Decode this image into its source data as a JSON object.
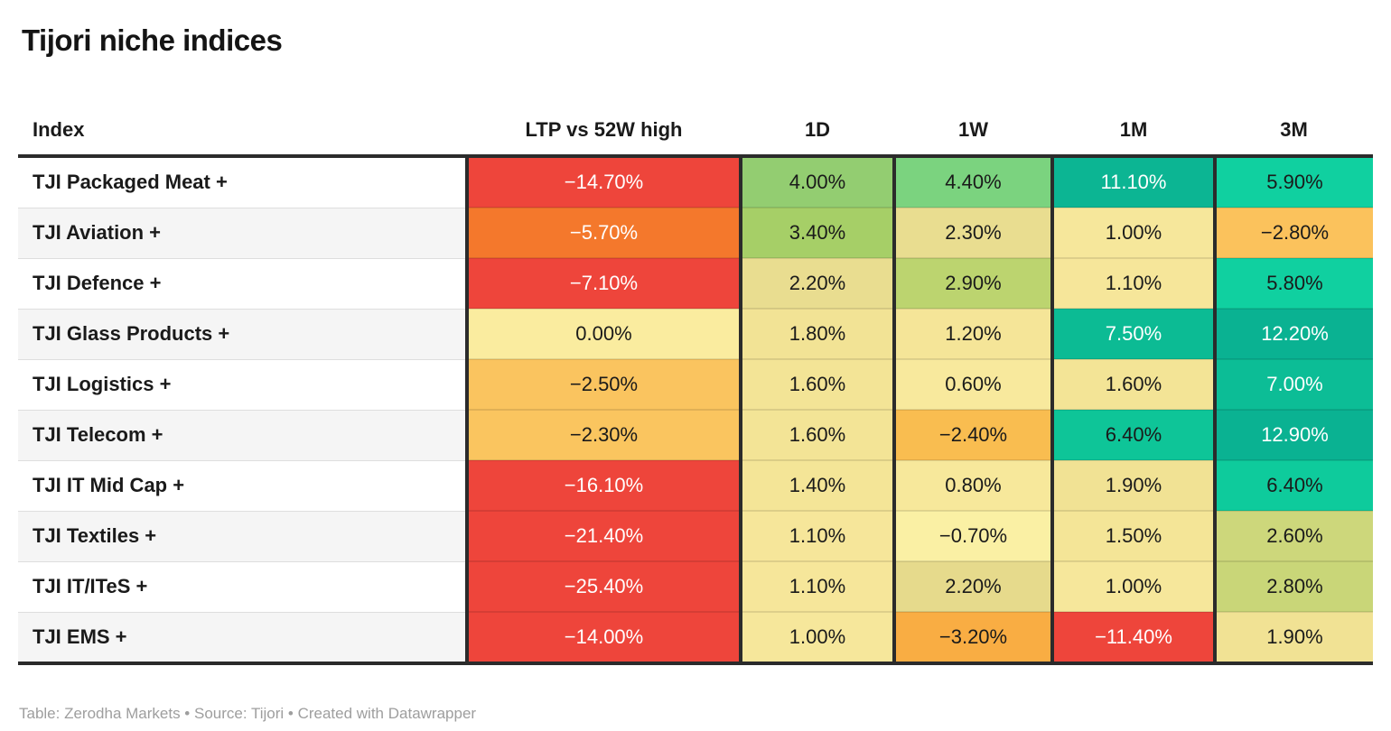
{
  "title": "Tijori niche indices",
  "footer": "Table: Zerodha Markets • Source: Tijori • Created with Datawrapper",
  "colors": {
    "border_dark": "#2b2b2b",
    "text_dark": "#1a1a1a",
    "text_light": "#ffffff",
    "row_alt_bg": "#f5f5f5",
    "footer_text": "#9e9e9e",
    "scale_red": "#ee453b",
    "scale_orange": "#f4782c",
    "scale_amber": "#fac45f",
    "scale_yellow": "#f3e496",
    "scale_green": "#93cd71",
    "scale_teal": "#0cb593"
  },
  "table": {
    "columns": [
      "Index",
      "LTP vs 52W high",
      "1D",
      "1W",
      "1M",
      "3M"
    ],
    "rows": [
      {
        "index": "TJI Packaged Meat +",
        "cells": [
          {
            "text": "−14.70%",
            "bg": "#ee453b",
            "fg": "#ffffff"
          },
          {
            "text": "4.00%",
            "bg": "#93cd71",
            "fg": "#1a1a1a"
          },
          {
            "text": "4.40%",
            "bg": "#7bd37f",
            "fg": "#1a1a1a"
          },
          {
            "text": "11.10%",
            "bg": "#0cb593",
            "fg": "#ffffff"
          },
          {
            "text": "5.90%",
            "bg": "#10d0a0",
            "fg": "#1a1a1a"
          }
        ]
      },
      {
        "index": "TJI Aviation +",
        "cells": [
          {
            "text": "−5.70%",
            "bg": "#f4782c",
            "fg": "#ffffff"
          },
          {
            "text": "3.40%",
            "bg": "#a6cf67",
            "fg": "#1a1a1a"
          },
          {
            "text": "2.30%",
            "bg": "#e9dd90",
            "fg": "#1a1a1a"
          },
          {
            "text": "1.00%",
            "bg": "#f6e79b",
            "fg": "#1a1a1a"
          },
          {
            "text": "−2.80%",
            "bg": "#fbc25c",
            "fg": "#1a1a1a"
          }
        ]
      },
      {
        "index": "TJI Defence +",
        "cells": [
          {
            "text": "−7.10%",
            "bg": "#ee453b",
            "fg": "#ffffff"
          },
          {
            "text": "2.20%",
            "bg": "#e9dd90",
            "fg": "#1a1a1a"
          },
          {
            "text": "2.90%",
            "bg": "#bcd46f",
            "fg": "#1a1a1a"
          },
          {
            "text": "1.10%",
            "bg": "#f6e69a",
            "fg": "#1a1a1a"
          },
          {
            "text": "5.80%",
            "bg": "#10d0a0",
            "fg": "#1a1a1a"
          }
        ]
      },
      {
        "index": "TJI Glass Products +",
        "cells": [
          {
            "text": "0.00%",
            "bg": "#faec9f",
            "fg": "#1a1a1a"
          },
          {
            "text": "1.80%",
            "bg": "#f2e395",
            "fg": "#1a1a1a"
          },
          {
            "text": "1.20%",
            "bg": "#f5e598",
            "fg": "#1a1a1a"
          },
          {
            "text": "7.50%",
            "bg": "#0cbb94",
            "fg": "#ffffff"
          },
          {
            "text": "12.20%",
            "bg": "#0ab292",
            "fg": "#ffffff"
          }
        ]
      },
      {
        "index": "TJI Logistics +",
        "cells": [
          {
            "text": "−2.50%",
            "bg": "#fac45f",
            "fg": "#1a1a1a"
          },
          {
            "text": "1.60%",
            "bg": "#f3e496",
            "fg": "#1a1a1a"
          },
          {
            "text": "0.60%",
            "bg": "#f8e99d",
            "fg": "#1a1a1a"
          },
          {
            "text": "1.60%",
            "bg": "#f3e496",
            "fg": "#1a1a1a"
          },
          {
            "text": "7.00%",
            "bg": "#0cbd96",
            "fg": "#ffffff"
          }
        ]
      },
      {
        "index": "TJI Telecom +",
        "cells": [
          {
            "text": "−2.30%",
            "bg": "#fac55f",
            "fg": "#1a1a1a"
          },
          {
            "text": "1.60%",
            "bg": "#f3e496",
            "fg": "#1a1a1a"
          },
          {
            "text": "−2.40%",
            "bg": "#f9bd50",
            "fg": "#1a1a1a"
          },
          {
            "text": "6.40%",
            "bg": "#0ec598",
            "fg": "#1a1a1a"
          },
          {
            "text": "12.90%",
            "bg": "#0ab292",
            "fg": "#ffffff"
          }
        ]
      },
      {
        "index": "TJI IT Mid Cap +",
        "cells": [
          {
            "text": "−16.10%",
            "bg": "#ee453b",
            "fg": "#ffffff"
          },
          {
            "text": "1.40%",
            "bg": "#f4e597",
            "fg": "#1a1a1a"
          },
          {
            "text": "0.80%",
            "bg": "#f7e89b",
            "fg": "#1a1a1a"
          },
          {
            "text": "1.90%",
            "bg": "#f1e294",
            "fg": "#1a1a1a"
          },
          {
            "text": "6.40%",
            "bg": "#0ecb9c",
            "fg": "#1a1a1a"
          }
        ]
      },
      {
        "index": "TJI Textiles +",
        "cells": [
          {
            "text": "−21.40%",
            "bg": "#ee453b",
            "fg": "#ffffff"
          },
          {
            "text": "1.10%",
            "bg": "#f6e69a",
            "fg": "#1a1a1a"
          },
          {
            "text": "−0.70%",
            "bg": "#faf0a4",
            "fg": "#1a1a1a"
          },
          {
            "text": "1.50%",
            "bg": "#f4e597",
            "fg": "#1a1a1a"
          },
          {
            "text": "2.60%",
            "bg": "#cdd77b",
            "fg": "#1a1a1a"
          }
        ]
      },
      {
        "index": "TJI IT/ITeS +",
        "cells": [
          {
            "text": "−25.40%",
            "bg": "#ee453b",
            "fg": "#ffffff"
          },
          {
            "text": "1.10%",
            "bg": "#f6e69a",
            "fg": "#1a1a1a"
          },
          {
            "text": "2.20%",
            "bg": "#e6da8c",
            "fg": "#1a1a1a"
          },
          {
            "text": "1.00%",
            "bg": "#f6e79b",
            "fg": "#1a1a1a"
          },
          {
            "text": "2.80%",
            "bg": "#c9d678",
            "fg": "#1a1a1a"
          }
        ]
      },
      {
        "index": "TJI EMS +",
        "cells": [
          {
            "text": "−14.00%",
            "bg": "#ee453b",
            "fg": "#ffffff"
          },
          {
            "text": "1.00%",
            "bg": "#f6e79b",
            "fg": "#1a1a1a"
          },
          {
            "text": "−3.20%",
            "bg": "#f9ad43",
            "fg": "#1a1a1a"
          },
          {
            "text": "−11.40%",
            "bg": "#ee453b",
            "fg": "#ffffff"
          },
          {
            "text": "1.90%",
            "bg": "#f1e294",
            "fg": "#1a1a1a"
          }
        ]
      }
    ]
  },
  "chart_data": {
    "type": "table",
    "title": "Tijori niche indices",
    "columns": [
      "Index",
      "LTP vs 52W high",
      "1D",
      "1W",
      "1M",
      "3M"
    ],
    "rows": [
      {
        "index": "TJI Packaged Meat +",
        "ltp_vs_52w_high": -14.7,
        "d1": 4.0,
        "w1": 4.4,
        "m1": 11.1,
        "m3": 5.9
      },
      {
        "index": "TJI Aviation +",
        "ltp_vs_52w_high": -5.7,
        "d1": 3.4,
        "w1": 2.3,
        "m1": 1.0,
        "m3": -2.8
      },
      {
        "index": "TJI Defence +",
        "ltp_vs_52w_high": -7.1,
        "d1": 2.2,
        "w1": 2.9,
        "m1": 1.1,
        "m3": 5.8
      },
      {
        "index": "TJI Glass Products +",
        "ltp_vs_52w_high": 0.0,
        "d1": 1.8,
        "w1": 1.2,
        "m1": 7.5,
        "m3": 12.2
      },
      {
        "index": "TJI Logistics +",
        "ltp_vs_52w_high": -2.5,
        "d1": 1.6,
        "w1": 0.6,
        "m1": 1.6,
        "m3": 7.0
      },
      {
        "index": "TJI Telecom +",
        "ltp_vs_52w_high": -2.3,
        "d1": 1.6,
        "w1": -2.4,
        "m1": 6.4,
        "m3": 12.9
      },
      {
        "index": "TJI IT Mid Cap +",
        "ltp_vs_52w_high": -16.1,
        "d1": 1.4,
        "w1": 0.8,
        "m1": 1.9,
        "m3": 6.4
      },
      {
        "index": "TJI Textiles +",
        "ltp_vs_52w_high": -21.4,
        "d1": 1.1,
        "w1": -0.7,
        "m1": 1.5,
        "m3": 2.6
      },
      {
        "index": "TJI IT/ITeS +",
        "ltp_vs_52w_high": -25.4,
        "d1": 1.1,
        "w1": 2.2,
        "m1": 1.0,
        "m3": 2.8
      },
      {
        "index": "TJI EMS +",
        "ltp_vs_52w_high": -14.0,
        "d1": 1.0,
        "w1": -3.2,
        "m1": -11.4,
        "m3": 1.9
      }
    ],
    "notes": "Cell backgrounds form a diverging red–yellow–green/teal heatmap keyed to the percentage value",
    "units": "%"
  }
}
